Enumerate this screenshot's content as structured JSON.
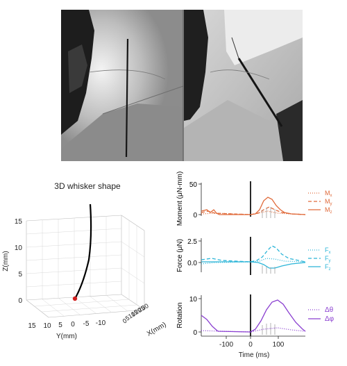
{
  "plot3d": {
    "title": "3D whisker shape",
    "zlabel": "Z(mm)",
    "ylabel": "Y(mm)",
    "xlabel": "X(mm)",
    "zticks": [
      "0",
      "5",
      "10",
      "15"
    ],
    "yticks": [
      "15",
      "10",
      "5",
      "0",
      "-5",
      "-10"
    ],
    "xticks": [
      "0",
      "5",
      "10",
      "15",
      "20",
      "25",
      "30"
    ],
    "colors": {
      "whisker": "#000000",
      "base_point": "#d21f1f"
    }
  },
  "traces": {
    "xlabel": "Time (ms)",
    "xticks": [
      "-100",
      "0",
      "100"
    ],
    "panels": [
      {
        "ylabel": "Moment (μN-mm)",
        "yticks": [
          "0",
          "50"
        ],
        "color": "#e06a3a",
        "legend": [
          {
            "label": "Mx",
            "sym": "M",
            "sub": "x",
            "dash": "1,2"
          },
          {
            "label": "My",
            "sym": "M",
            "sub": "y",
            "dash": "5,3"
          },
          {
            "label": "Mz",
            "sym": "M",
            "sub": "z",
            "dash": ""
          }
        ]
      },
      {
        "ylabel": "Force (μN)",
        "yticks": [
          "0.0",
          "2.5"
        ],
        "color": "#2bb5d8",
        "legend": [
          {
            "label": "Fx",
            "sym": "F",
            "sub": "x",
            "dash": "1,2"
          },
          {
            "label": "Fy",
            "sym": "F",
            "sub": "y",
            "dash": "5,3"
          },
          {
            "label": "Fz",
            "sym": "F",
            "sub": "z",
            "dash": ""
          }
        ]
      },
      {
        "ylabel": "Rotation",
        "yticks": [
          "0",
          "10"
        ],
        "color": "#8a3fd0",
        "legend": [
          {
            "label": "Δθ",
            "sym": "Δθ",
            "sub": "",
            "dash": "1,2"
          },
          {
            "label": "Δφ",
            "sym": "Δφ",
            "sub": "",
            "dash": ""
          }
        ]
      }
    ]
  }
}
